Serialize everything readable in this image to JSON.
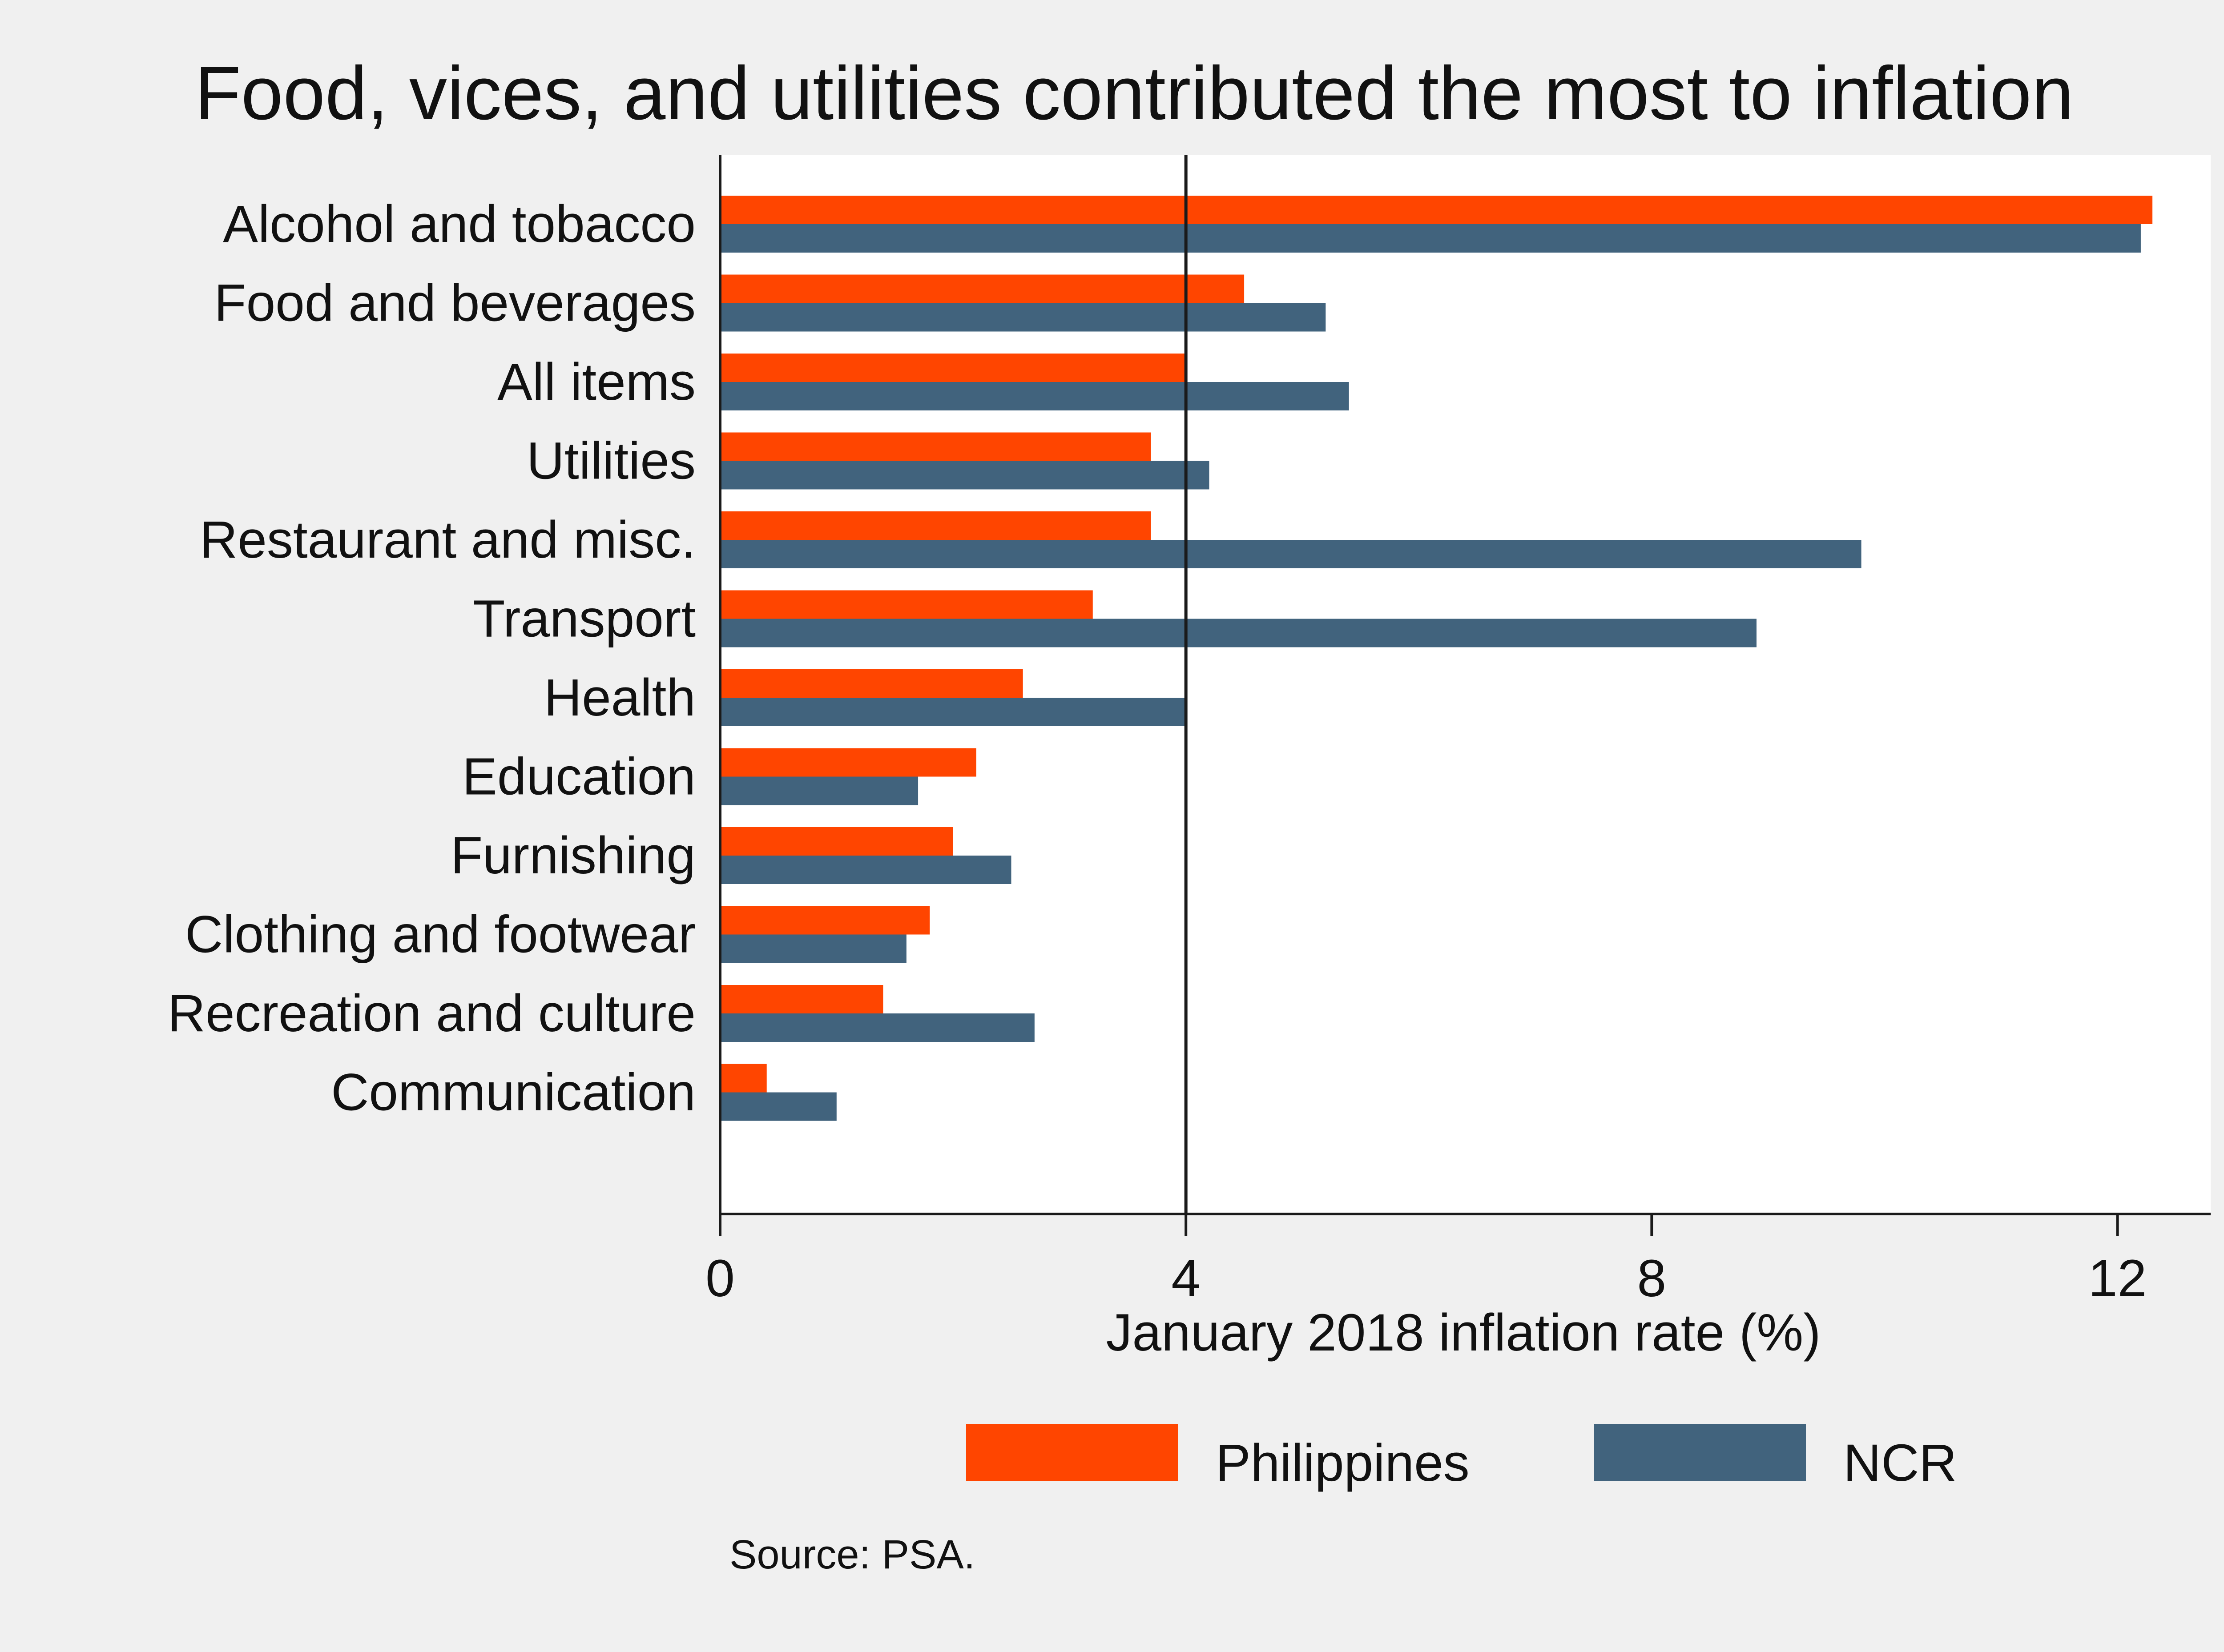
{
  "chart_data": {
    "type": "bar",
    "orientation": "horizontal",
    "title": "Food, vices, and utilities contributed the most to inflation",
    "xlabel": "January 2018 inflation rate (%)",
    "ylabel": "",
    "xlim": [
      0,
      12.8
    ],
    "xticks": [
      0,
      4,
      8,
      12
    ],
    "reference_line": 4,
    "grid": false,
    "legend_position": "bottom",
    "categories": [
      "Alcohol and tobacco",
      "Food and beverages",
      "All items",
      "Utilities",
      "Restaurant and misc.",
      "Transport",
      "Health",
      "Education",
      "Furnishing",
      "Clothing and footwear",
      "Recreation and culture",
      "Communication"
    ],
    "series": [
      {
        "name": "Philippines",
        "color": "#ff4500",
        "values": [
          12.3,
          4.5,
          4.0,
          3.7,
          3.7,
          3.2,
          2.6,
          2.2,
          2.0,
          1.8,
          1.4,
          0.4
        ]
      },
      {
        "name": "NCR",
        "color": "#41637d",
        "values": [
          12.2,
          5.2,
          5.4,
          4.2,
          9.8,
          8.9,
          4.0,
          1.7,
          2.5,
          1.6,
          2.7,
          1.0
        ]
      }
    ],
    "source": "Source: PSA."
  },
  "colors": {
    "background": "#f0f0f0",
    "plot_background": "#ffffff",
    "axis": "#1a1a1a"
  }
}
